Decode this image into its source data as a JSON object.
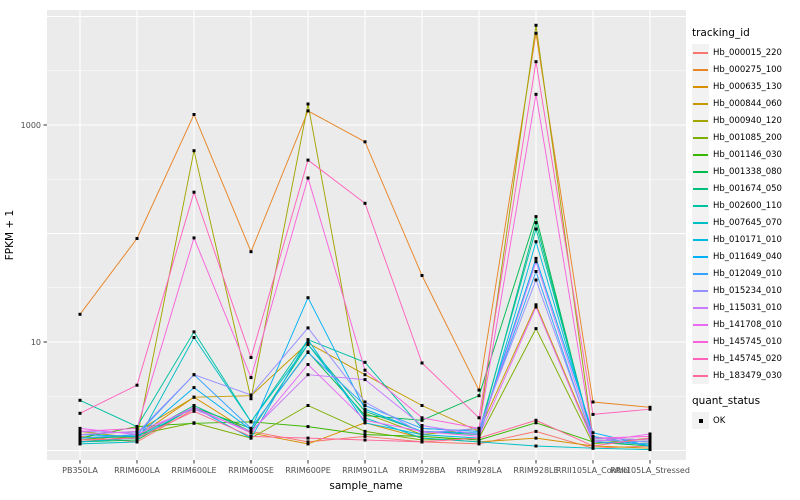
{
  "chart_data": {
    "type": "line",
    "title": "",
    "xlabel": "sample_name",
    "ylabel": "FPKM + 1",
    "y_scale": "log10",
    "y_ticks": [
      10,
      1000
    ],
    "y_tick_labels": [
      "10",
      "1000"
    ],
    "ylim": [
      0.82,
      11500
    ],
    "grid": "major+minor white on gray panel",
    "panel_bg": "#EBEBEB",
    "grid_color": "#FFFFFF",
    "tick_label_color": "#4D4D4D",
    "marker": {
      "shape": "small-black-square",
      "color": "#000000"
    },
    "legend_position": "right",
    "legend_color_title": "tracking_id",
    "legend_shape_title": "quant_status",
    "legend_shape_label": "OK",
    "categories": [
      "PB350LA",
      "RRIM600LA",
      "RRIM600LE",
      "RRIM600SE",
      "RRIM600PE",
      "RRIM901LA",
      "RRIM928BA",
      "RRIM928LA",
      "RRIM928LE",
      "RRII105LA_Control",
      "RRII105LA_Stressed"
    ],
    "series": [
      {
        "name": "Hb_000015_220",
        "color": "#F8766D",
        "values": [
          1.35,
          1.2,
          2.4,
          1.5,
          1.2,
          1.35,
          1.2,
          1.15,
          1.5,
          1.05,
          1.1
        ]
      },
      {
        "name": "Hb_000275_100",
        "color": "#E88526",
        "values": [
          18,
          90,
          1250,
          68,
          1350,
          700,
          41,
          3.6,
          7000,
          2.8,
          2.5
        ]
      },
      {
        "name": "Hb_000635_130",
        "color": "#D89000",
        "values": [
          1.2,
          1.35,
          3.1,
          1.45,
          1.15,
          1.8,
          1.3,
          1.2,
          1.3,
          1.1,
          1.05
        ]
      },
      {
        "name": "Hb_000844_060",
        "color": "#C49A00",
        "values": [
          1.4,
          1.5,
          3.1,
          3.2,
          9.8,
          5.0,
          2.6,
          1.5,
          22,
          1.25,
          1.2
        ]
      },
      {
        "name": "Hb_000940_120",
        "color": "#A3A500",
        "values": [
          1.5,
          1.3,
          580,
          3.0,
          1560,
          2.2,
          1.4,
          1.6,
          8300,
          1.3,
          1.25
        ]
      },
      {
        "name": "Hb_001085_200",
        "color": "#7CAE00",
        "values": [
          1.25,
          1.4,
          1.8,
          1.3,
          2.6,
          1.5,
          1.25,
          1.3,
          13.3,
          1.15,
          1.3
        ]
      },
      {
        "name": "Hb_001146_030",
        "color": "#39B600",
        "values": [
          1.3,
          1.66,
          1.78,
          1.84,
          1.66,
          1.4,
          1.35,
          1.25,
          1.8,
          1.2,
          1.15
        ]
      },
      {
        "name": "Hb_001338_080",
        "color": "#00BB4E",
        "values": [
          1.2,
          1.25,
          2.5,
          1.6,
          8.1,
          2.1,
          1.9,
          3.2,
          143,
          1.2,
          1.1
        ]
      },
      {
        "name": "Hb_001674_050",
        "color": "#00BF7D",
        "values": [
          1.3,
          1.34,
          2.6,
          1.5,
          9.5,
          2.3,
          1.5,
          1.4,
          126,
          1.25,
          1.2
        ]
      },
      {
        "name": "Hb_002600_110",
        "color": "#00C1A3",
        "values": [
          2.9,
          1.66,
          12.4,
          1.84,
          10.5,
          6.5,
          1.6,
          1.5,
          110,
          1.3,
          1.25
        ]
      },
      {
        "name": "Hb_007645_070",
        "color": "#00BFC4",
        "values": [
          1.15,
          1.2,
          11.0,
          1.84,
          9.5,
          2.0,
          1.3,
          1.2,
          1.1,
          1.05,
          1.02
        ]
      },
      {
        "name": "Hb_010171_010",
        "color": "#00BAE0",
        "values": [
          1.2,
          1.3,
          2.5,
          1.3,
          10.5,
          1.8,
          1.4,
          1.3,
          84,
          1.35,
          1.1
        ]
      },
      {
        "name": "Hb_011649_040",
        "color": "#00B0F6",
        "values": [
          1.4,
          1.35,
          3.8,
          1.55,
          25.6,
          2.4,
          1.5,
          1.45,
          59,
          1.46,
          1.1
        ]
      },
      {
        "name": "Hb_012049_010",
        "color": "#35A2FF",
        "values": [
          1.3,
          1.4,
          5.0,
          1.6,
          8.0,
          2.6,
          1.6,
          1.5,
          44.6,
          1.2,
          1.15
        ]
      },
      {
        "name": "Hb_015234_010",
        "color": "#9590FF",
        "values": [
          1.5,
          1.45,
          5.0,
          3.25,
          13.5,
          2.8,
          1.45,
          1.6,
          37.3,
          1.25,
          1.2
        ]
      },
      {
        "name": "Hb_115031_010",
        "color": "#C77CFF",
        "values": [
          1.4,
          1.5,
          2.4,
          1.5,
          5.0,
          4.5,
          1.7,
          1.4,
          55,
          1.3,
          1.25
        ]
      },
      {
        "name": "Hb_141708_010",
        "color": "#E76BF3",
        "values": [
          1.6,
          1.4,
          2.5,
          1.45,
          6.2,
          1.9,
          1.5,
          1.35,
          21,
          1.2,
          1.42
        ]
      },
      {
        "name": "Hb_145745_010",
        "color": "#FA62DB",
        "values": [
          1.5,
          1.6,
          91,
          4.7,
          325,
          5.5,
          2.0,
          1.6,
          1920,
          1.3,
          1.35
        ]
      },
      {
        "name": "Hb_145745_020",
        "color": "#FF62BC",
        "values": [
          2.2,
          4.0,
          240,
          7.2,
          475,
          190,
          6.4,
          2.0,
          3830,
          2.15,
          2.4
        ]
      },
      {
        "name": "Hb_183479_030",
        "color": "#FF6A98",
        "values": [
          1.25,
          1.3,
          2.3,
          1.35,
          1.3,
          1.25,
          1.2,
          1.3,
          1.9,
          1.1,
          1.3
        ]
      }
    ]
  }
}
